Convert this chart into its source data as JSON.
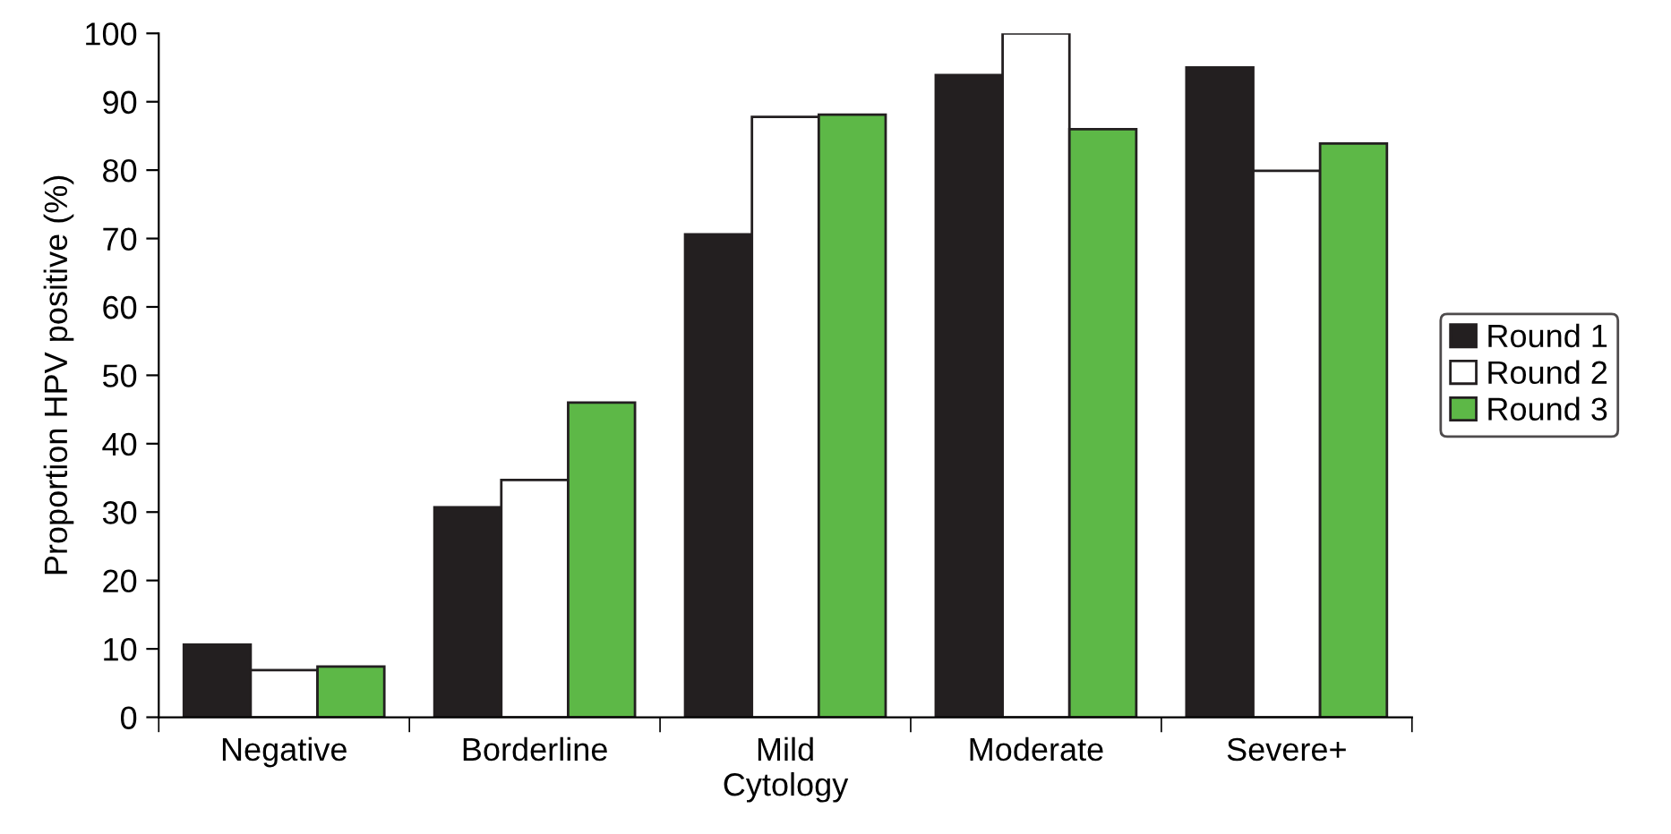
{
  "chart_data": {
    "type": "bar",
    "xlabel": "Cytology",
    "ylabel": "Proportion HPV positive (%)",
    "categories": [
      "Negative",
      "Borderline",
      "Mild",
      "Moderate",
      "Severe+"
    ],
    "series": [
      {
        "name": "Round 1",
        "color": "#231f20",
        "values": [
          10.6,
          30.7,
          70.6,
          93.9,
          95.0
        ]
      },
      {
        "name": "Round 2",
        "color": "#ffffff",
        "values": [
          6.9,
          34.7,
          87.8,
          100,
          79.9
        ]
      },
      {
        "name": "Round 3",
        "color": "#5db847",
        "values": [
          7.4,
          46.0,
          88.1,
          86.0,
          83.9
        ]
      }
    ],
    "ylim": [
      0,
      100
    ],
    "yticks": [
      0,
      10,
      20,
      30,
      40,
      50,
      60,
      70,
      80,
      90,
      100
    ],
    "grid": false,
    "legend": "right"
  }
}
